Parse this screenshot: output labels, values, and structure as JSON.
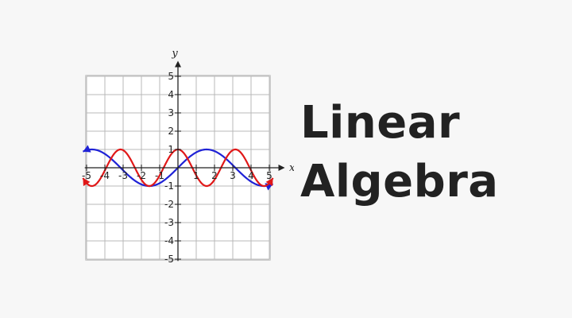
{
  "title_lines": [
    "Linear",
    "Algebra"
  ],
  "chart_data": {
    "type": "line",
    "xlabel": "x",
    "ylabel": "y",
    "xlim": [
      -5,
      5
    ],
    "ylim": [
      -5,
      5
    ],
    "grid": true,
    "x_tick_labels": [
      "-5",
      "-4",
      "-3",
      "-2",
      "-1",
      "1",
      "2",
      "3",
      "4",
      "5"
    ],
    "y_tick_labels": [
      "5",
      "4",
      "3",
      "2",
      "1",
      "-1",
      "-2",
      "-3",
      "-4",
      "-5"
    ],
    "series": [
      {
        "function": "sin(x)",
        "color": "#1f22d6",
        "x_range": [
          -5.2,
          5.2
        ],
        "arrows": "both"
      },
      {
        "function": "cos(2x)",
        "color": "#e01818",
        "x_range": [
          -5.2,
          5.2
        ],
        "arrows": "both"
      }
    ],
    "colors": {
      "grid": "#b9b9b9",
      "axis": "#222222",
      "background": "#ffffff"
    }
  }
}
